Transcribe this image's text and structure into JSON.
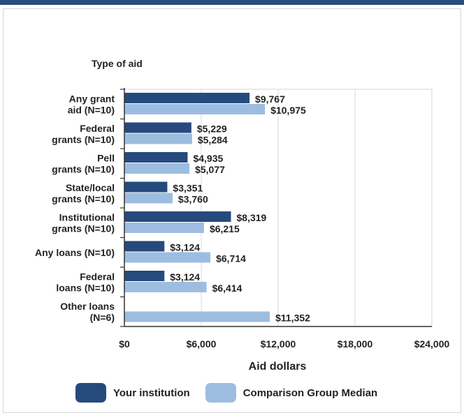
{
  "chart_data": {
    "type": "bar",
    "orientation": "horizontal",
    "title": "",
    "ylabel": "Type of aid",
    "xlabel": "Aid dollars",
    "xlim": [
      0,
      24000
    ],
    "x_ticks": [
      0,
      6000,
      12000,
      18000,
      24000
    ],
    "x_tick_labels": [
      "$0",
      "$6,000",
      "$12,000",
      "$18,000",
      "$24,000"
    ],
    "grid": true,
    "legend": "bottom",
    "categories": [
      [
        "Any grant",
        "aid (N=10)"
      ],
      [
        "Federal",
        "grants (N=10)"
      ],
      [
        "Pell",
        "grants (N=10)"
      ],
      [
        "State/local",
        "grants (N=10)"
      ],
      [
        "Institutional",
        "grants (N=10)"
      ],
      [
        "Any loans (N=10)"
      ],
      [
        "Federal",
        "loans (N=10)"
      ],
      [
        "Other loans",
        "(N=6)"
      ]
    ],
    "series": [
      {
        "name": "Your institution",
        "color": "#264a7c",
        "values": [
          9767,
          5229,
          4935,
          3351,
          8319,
          3124,
          3124,
          null
        ],
        "labels": [
          "$9,767",
          "$5,229",
          "$4,935",
          "$3,351",
          "$8,319",
          "$3,124",
          "$3,124",
          ""
        ]
      },
      {
        "name": "Comparison Group Median",
        "color": "#9dbde0",
        "values": [
          10975,
          5284,
          5077,
          3760,
          6215,
          6714,
          6414,
          11352
        ],
        "labels": [
          "$10,975",
          "$5,284",
          "$5,077",
          "$3,760",
          "$6,215",
          "$6,714",
          "$6,414",
          "$11,352"
        ]
      }
    ]
  }
}
